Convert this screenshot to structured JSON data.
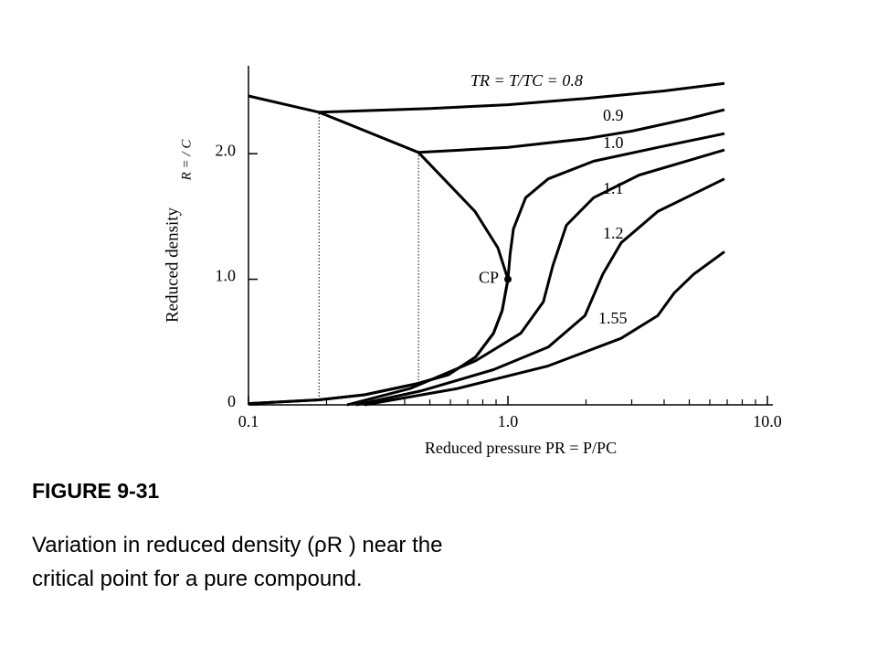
{
  "chart_data": {
    "type": "line",
    "xscale": "log",
    "xlabel": "Reduced pressure PR = P/PC",
    "ylabel": "Reduced density",
    "ylabel_symbol": "R = / C",
    "xlim": [
      0.1,
      10
    ],
    "ylim": [
      0,
      2.7
    ],
    "xticks": [
      0.1,
      {
        "value": 1,
        "label": "1.0"
      },
      {
        "value": 10,
        "label": "10.0"
      }
    ],
    "xminorticks": [
      0.2,
      0.3,
      0.4,
      0.5,
      0.6,
      0.7,
      0.8,
      0.9,
      2,
      3,
      4,
      5,
      6,
      7,
      8,
      9
    ],
    "yticks": [
      0,
      {
        "value": 1,
        "label": "1.0"
      },
      {
        "value": 2,
        "label": "2.0"
      }
    ],
    "series": [
      {
        "color": "#000000",
        "x": [
          0.1,
          0.187,
          0.452,
          0.747,
          0.915,
          1.0,
          0.95,
          0.88,
          0.75,
          0.59,
          0.45,
          0.28,
          0.187,
          0.1
        ],
        "values": [
          2.46,
          2.33,
          2.01,
          1.54,
          1.25,
          1.0,
          0.75,
          0.57,
          0.38,
          0.24,
          0.17,
          0.08,
          0.04,
          0.01
        ]
      },
      {
        "name": "TR = T/TC = 0.8",
        "color": "#000000",
        "x": [
          0.187,
          0.5,
          1,
          2,
          4,
          6.83
        ],
        "values": [
          2.33,
          2.36,
          2.39,
          2.44,
          2.5,
          2.56
        ]
      },
      {
        "name": "0.9",
        "color": "#000000",
        "x": [
          0.452,
          1,
          2,
          3,
          5,
          6.83
        ],
        "values": [
          2.01,
          2.05,
          2.12,
          2.18,
          2.28,
          2.35
        ]
      },
      {
        "name": "1.0",
        "color": "#000000",
        "x": [
          0.1,
          0.187,
          0.28,
          0.45,
          0.59,
          0.75,
          0.88,
          0.95,
          1.0,
          1.02,
          1.05,
          1.17,
          1.43,
          2.14,
          3.78,
          6.83
        ],
        "values": [
          0.01,
          0.04,
          0.08,
          0.17,
          0.24,
          0.38,
          0.57,
          0.75,
          1.0,
          1.2,
          1.4,
          1.65,
          1.8,
          1.94,
          2.05,
          2.16
        ]
      },
      {
        "name": "1.1",
        "color": "#000000",
        "x": [
          0.24,
          0.42,
          0.75,
          1.12,
          1.37,
          1.49,
          1.68,
          2.14,
          3.21,
          6.83
        ],
        "values": [
          0.0,
          0.13,
          0.35,
          0.57,
          0.82,
          1.11,
          1.43,
          1.65,
          1.83,
          2.03
        ]
      },
      {
        "name": "1.2",
        "color": "#000000",
        "x": [
          0.26,
          0.46,
          0.88,
          1.43,
          1.98,
          2.32,
          2.73,
          3.78,
          6.83
        ],
        "values": [
          0.0,
          0.11,
          0.28,
          0.46,
          0.71,
          1.04,
          1.29,
          1.54,
          1.8
        ]
      },
      {
        "name": "1.55",
        "color": "#000000",
        "x": [
          0.28,
          0.64,
          1.43,
          2.73,
          3.78,
          4.37,
          5.2,
          6.83
        ],
        "values": [
          0.0,
          0.13,
          0.31,
          0.53,
          0.71,
          0.89,
          1.04,
          1.22
        ]
      }
    ],
    "tie_lines": [
      {
        "x": [
          0.187,
          0.187
        ],
        "values": [
          0.04,
          2.33
        ]
      },
      {
        "x": [
          0.452,
          0.452
        ],
        "values": [
          0.17,
          2.01
        ]
      }
    ],
    "critical_point": {
      "label": "CP",
      "x": 1,
      "y": 1
    }
  },
  "caption": {
    "title": "FIGURE 9-31",
    "text": "Variation in reduced density (ρR ) near the critical point for a pure compound."
  }
}
